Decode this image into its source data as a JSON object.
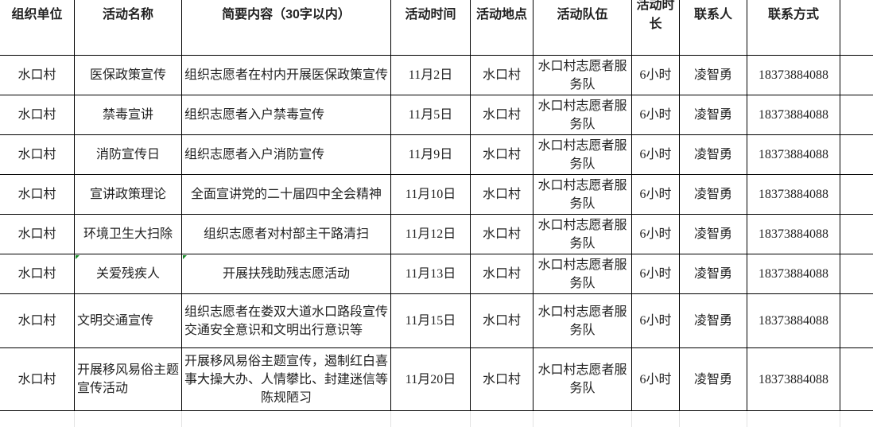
{
  "headers": [
    "组织单位",
    "活动名称",
    "简要内容（30字以内）",
    "活动时间",
    "活动地点",
    "活动队伍",
    "活动时长",
    "联系人",
    "联系方式",
    ""
  ],
  "rows": [
    [
      "水口村",
      "医保政策宣传",
      "组织志愿者在村内开展医保政策宣传",
      "11月2日",
      "水口村",
      "水口村志愿者服务队",
      "6小时",
      "凌智勇",
      "18373884088",
      ""
    ],
    [
      "水口村",
      "禁毒宣讲",
      "组织志愿者入户禁毒宣传",
      "11月5日",
      "水口村",
      "水口村志愿者服务队",
      "6小时",
      "凌智勇",
      "18373884088",
      ""
    ],
    [
      "水口村",
      "消防宣传日",
      "组织志愿者入户消防宣传",
      "11月9日",
      "水口村",
      "水口村志愿者服务队",
      "6小时",
      "凌智勇",
      "18373884088",
      ""
    ],
    [
      "水口村",
      "宣讲政策理论",
      "全面宣讲党的二十届四中全会精神",
      "11月10日",
      "水口村",
      "水口村志愿者服务队",
      "6小时",
      "凌智勇",
      "18373884088",
      ""
    ],
    [
      "水口村",
      "环境卫生大扫除",
      "组织志愿者对村部主干路清扫",
      "11月12日",
      "水口村",
      "水口村志愿者服务队",
      "6小时",
      "凌智勇",
      "18373884088",
      ""
    ],
    [
      "水口村",
      "关爱残疾人",
      "开展扶残助残志愿活动",
      "11月13日",
      "水口村",
      "水口村志愿者服务队",
      "6小时",
      "凌智勇",
      "18373884088",
      ""
    ],
    [
      "水口村",
      "文明交通宣传",
      "组织志愿者在娄双大道水口路段宣传交通安全意识和文明出行意识等",
      "11月15日",
      "水口村",
      "水口村志愿者服务队",
      "6小时",
      "凌智勇",
      "18373884088",
      ""
    ],
    [
      "水口村",
      "开展移风易俗主题宣传活动",
      "开展移风易俗主题宣传，遏制红白喜事大操大办、人情攀比、封建迷信等陈规陋习",
      "11月20日",
      "水口村",
      "水口村志愿者服务队",
      "6小时",
      "凌智勇",
      "18373884088",
      ""
    ]
  ],
  "colors": {
    "grid": "#000000",
    "comment_marker": "#1a8a2a"
  }
}
